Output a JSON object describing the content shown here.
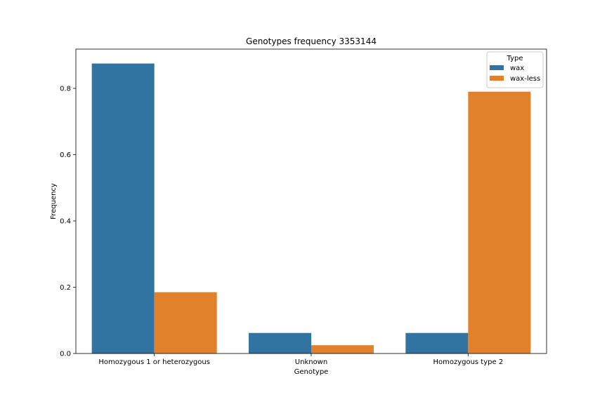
{
  "chart_data": {
    "type": "bar",
    "title": "Genotypes frequency 3353144",
    "xlabel": "Genotype",
    "ylabel": "Frequency",
    "categories": [
      "Homozygous 1 or heterozygous",
      "Unknown",
      "Homozygous type 2"
    ],
    "series": [
      {
        "name": "wax",
        "color": "#3274a1",
        "values": [
          0.875,
          0.062,
          0.062
        ]
      },
      {
        "name": "wax-less",
        "color": "#e1812c",
        "values": [
          0.185,
          0.025,
          0.79
        ]
      }
    ],
    "ylim": [
      0,
      0.92
    ],
    "yticks": [
      "0.0",
      "0.2",
      "0.4",
      "0.6",
      "0.8"
    ],
    "legend": {
      "title": "Type",
      "position": "top-right"
    },
    "grid": false
  }
}
